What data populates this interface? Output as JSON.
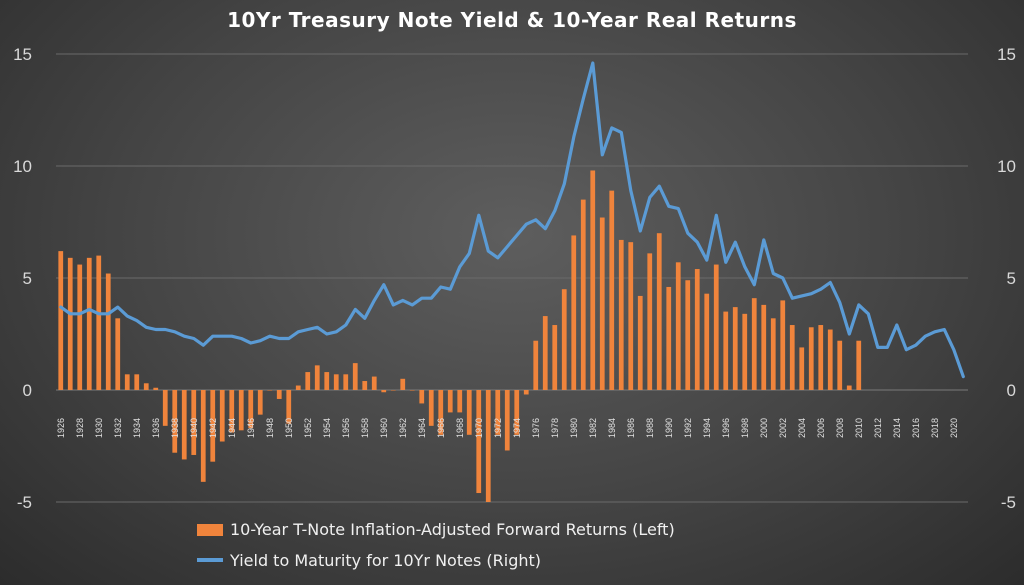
{
  "chart_data": {
    "type": "bar+line",
    "title": "10Yr Treasury Note Yield & 10-Year  Real Returns",
    "left_axis": {
      "ylim": [
        -5,
        15
      ],
      "ticks": [
        "-5",
        "0",
        "5",
        "10",
        "15"
      ]
    },
    "right_axis": {
      "ylim": [
        -5,
        15
      ],
      "ticks": [
        "-5",
        "0",
        "5",
        "10",
        "15"
      ]
    },
    "x_tick_labels": [
      "1926",
      "1928",
      "1930",
      "1932",
      "1934",
      "1936",
      "1938",
      "1940",
      "1942",
      "1944",
      "1946",
      "1948",
      "1950",
      "1952",
      "1954",
      "1956",
      "1958",
      "1960",
      "1962",
      "1964",
      "1966",
      "1968",
      "1970",
      "1972",
      "1974",
      "1976",
      "1978",
      "1980",
      "1982",
      "1984",
      "1986",
      "1988",
      "1990",
      "1992",
      "1994",
      "1996",
      "1998",
      "2000",
      "2002",
      "2004",
      "2006",
      "2008",
      "2010",
      "2012",
      "2014",
      "2016",
      "2018",
      "2020"
    ],
    "years": [
      1926,
      1927,
      1928,
      1929,
      1930,
      1931,
      1932,
      1933,
      1934,
      1935,
      1936,
      1937,
      1938,
      1939,
      1940,
      1941,
      1942,
      1943,
      1944,
      1945,
      1946,
      1947,
      1948,
      1949,
      1950,
      1951,
      1952,
      1953,
      1954,
      1955,
      1956,
      1957,
      1958,
      1959,
      1960,
      1961,
      1962,
      1963,
      1964,
      1965,
      1966,
      1967,
      1968,
      1969,
      1970,
      1971,
      1972,
      1973,
      1974,
      1975,
      1976,
      1977,
      1978,
      1979,
      1980,
      1981,
      1982,
      1983,
      1984,
      1985,
      1986,
      1987,
      1988,
      1989,
      1990,
      1991,
      1992,
      1993,
      1994,
      1995,
      1996,
      1997,
      1998,
      1999,
      2000,
      2001,
      2002,
      2003,
      2004,
      2005,
      2006,
      2007,
      2008,
      2009,
      2010,
      2011,
      2012,
      2013,
      2014,
      2015,
      2016,
      2017,
      2018,
      2019,
      2020,
      2021
    ],
    "series": [
      {
        "name": "10-Year T-Note Inflation-Adjusted Forward Returns (Left)",
        "type": "bar",
        "color": "#f0843c",
        "axis": "left",
        "values": [
          6.2,
          5.9,
          5.6,
          5.9,
          6.0,
          5.2,
          3.2,
          0.7,
          0.7,
          0.3,
          0.1,
          -1.6,
          -2.8,
          -3.1,
          -2.9,
          -4.1,
          -3.2,
          -2.3,
          -1.9,
          -1.8,
          -1.7,
          -1.1,
          0.0,
          -0.4,
          -1.5,
          0.2,
          0.8,
          1.1,
          0.8,
          0.7,
          0.7,
          1.2,
          0.4,
          0.6,
          -0.1,
          0.0,
          0.5,
          0.0,
          -0.6,
          -1.6,
          -2.0,
          -1.0,
          -1.0,
          -2.0,
          -4.6,
          -5.0,
          -2.0,
          -2.7,
          -2.0,
          -0.2,
          2.2,
          3.3,
          2.9,
          4.5,
          6.9,
          8.5,
          9.8,
          7.7,
          8.9,
          6.7,
          6.6,
          4.2,
          6.1,
          7.0,
          4.6,
          5.7,
          4.9,
          5.4,
          4.3,
          5.6,
          3.5,
          3.7,
          3.4,
          4.1,
          3.8,
          3.2,
          4.0,
          2.9,
          1.9,
          2.8,
          2.9,
          2.7,
          2.2,
          0.2,
          2.2,
          null,
          null,
          null,
          null,
          null,
          null,
          null,
          null,
          null,
          null,
          null
        ]
      },
      {
        "name": "Yield to Maturity for 10Yr Notes (Right)",
        "type": "line",
        "color": "#5b9bd5",
        "axis": "right",
        "values": [
          3.7,
          3.4,
          3.4,
          3.6,
          3.4,
          3.4,
          3.7,
          3.3,
          3.1,
          2.8,
          2.7,
          2.7,
          2.6,
          2.4,
          2.3,
          2.0,
          2.4,
          2.4,
          2.4,
          2.3,
          2.1,
          2.2,
          2.4,
          2.3,
          2.3,
          2.6,
          2.7,
          2.8,
          2.5,
          2.6,
          2.9,
          3.6,
          3.2,
          4.0,
          4.7,
          3.8,
          4.0,
          3.8,
          4.1,
          4.1,
          4.6,
          4.5,
          5.5,
          6.1,
          7.8,
          6.2,
          5.9,
          6.4,
          6.9,
          7.4,
          7.6,
          7.2,
          8.0,
          9.2,
          11.3,
          13.0,
          14.6,
          10.5,
          11.7,
          11.5,
          8.9,
          7.1,
          8.6,
          9.1,
          8.2,
          8.1,
          7.0,
          6.6,
          5.8,
          7.8,
          5.7,
          6.6,
          5.5,
          4.7,
          6.7,
          5.2,
          5.0,
          4.1,
          4.2,
          4.3,
          4.5,
          4.8,
          3.9,
          2.5,
          3.8,
          3.4,
          1.9,
          1.9,
          2.9,
          1.8,
          2.0,
          2.4,
          2.6,
          2.7,
          1.8,
          0.6
        ]
      }
    ],
    "legend_position": "bottom"
  }
}
